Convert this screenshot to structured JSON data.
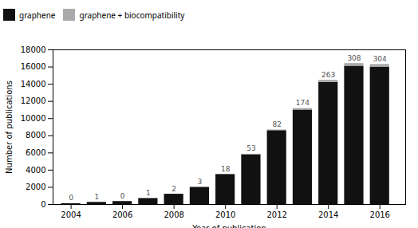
{
  "chart_data": {
    "type": "bar",
    "x": [
      2004,
      2005,
      2006,
      2007,
      2008,
      2009,
      2010,
      2011,
      2012,
      2013,
      2014,
      2015,
      2016
    ],
    "series": [
      {
        "name": "graphene",
        "color": "#111111",
        "values": [
          100,
          250,
          350,
          700,
          1200,
          2000,
          3500,
          5800,
          8600,
          11000,
          14200,
          16100,
          16000
        ]
      },
      {
        "name": "graphene + biocompatibility",
        "color": "#aaaaaa",
        "data_labels": true,
        "values": [
          0,
          1,
          0,
          1,
          2,
          3,
          18,
          53,
          82,
          174,
          263,
          308,
          304
        ]
      }
    ],
    "stacked": true,
    "xlabel": "Year of publication",
    "ylabel": "Number of publications",
    "xlim": [
      2003.3,
      2017.0
    ],
    "xticks": [
      2004,
      2006,
      2008,
      2010,
      2012,
      2014,
      2016
    ],
    "ylim": [
      0,
      18000
    ],
    "yticks": [
      0,
      2000,
      4000,
      6000,
      8000,
      10000,
      12000,
      14000,
      16000,
      18000
    ],
    "legend": "upper left",
    "grid": false
  }
}
